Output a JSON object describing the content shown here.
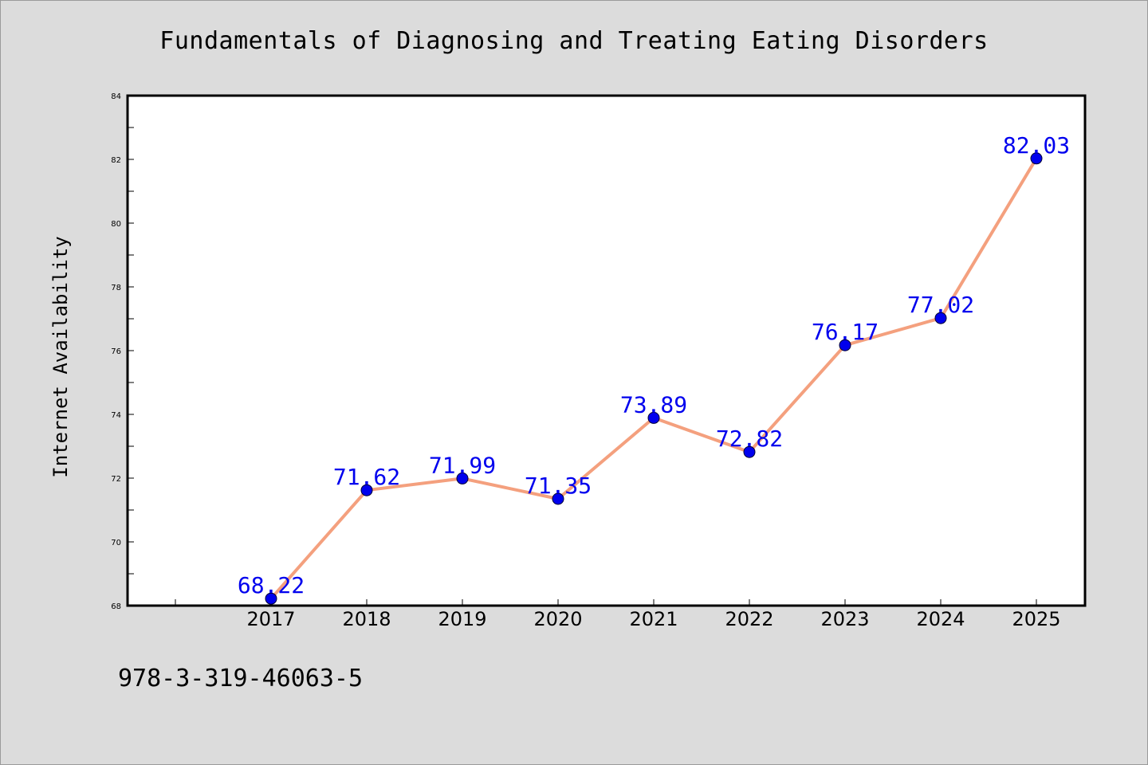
{
  "page": {
    "title": "Fundamentals of Diagnosing and Treating Eating Disorders",
    "isbn": "978-3-319-46063-5"
  },
  "chart_data": {
    "type": "line",
    "title": "Fundamentals of Diagnosing and Treating Eating Disorders",
    "xlabel": "",
    "ylabel": "Internet Availability",
    "categories": [
      "2017",
      "2018",
      "2019",
      "2020",
      "2021",
      "2022",
      "2023",
      "2024",
      "2025"
    ],
    "series": [
      {
        "values": [
          68.22,
          71.62,
          71.99,
          71.35,
          73.89,
          72.82,
          76.17,
          77.02,
          82.03
        ],
        "labels": [
          "68.22",
          "71.62",
          "71.99",
          "71.35",
          "73.89",
          "72.82",
          "76.17",
          "77.02",
          "82.03"
        ]
      }
    ],
    "ylim": [
      68,
      84
    ],
    "yticks": [
      "68",
      "70",
      "72",
      "74",
      "76",
      "78",
      "80",
      "82",
      "84"
    ],
    "grid": false,
    "legend": "none",
    "colors": {
      "line": "#f4a07e",
      "marker": "#0000ee",
      "label": "#0000ee",
      "background": "#dcdcdc",
      "plot_bg": "#ffffff"
    }
  }
}
